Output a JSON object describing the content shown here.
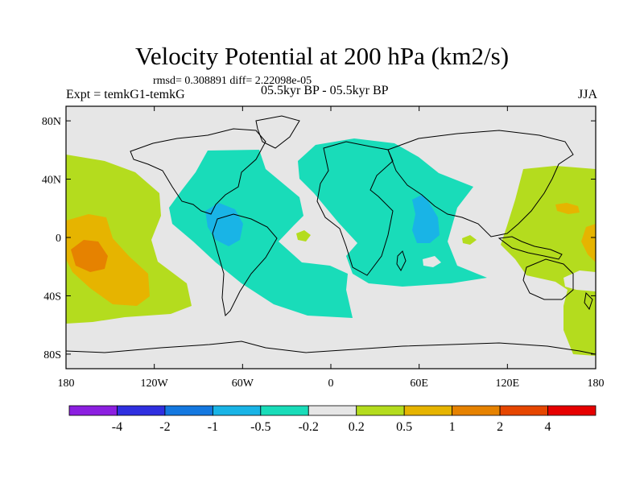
{
  "title": "Velocity Potential at 200 hPa (km2/s)",
  "stats": "rmsd= 0.308891 diff= 2.22098e-05",
  "experiment": "Expt = temkG1-temkG",
  "period": "05.5kyr BP - 05.5kyr BP",
  "season": "JJA",
  "map": {
    "background_color": "#e6e6e6",
    "y_ticks": [
      {
        "label": "80N",
        "lat": 80
      },
      {
        "label": "40N",
        "lat": 40
      },
      {
        "label": "0",
        "lat": 0
      },
      {
        "label": "40S",
        "lat": -40
      },
      {
        "label": "80S",
        "lat": -80
      }
    ],
    "x_ticks": [
      {
        "label": "180",
        "lon": -180
      },
      {
        "label": "120W",
        "lon": -120
      },
      {
        "label": "60W",
        "lon": -60
      },
      {
        "label": "0",
        "lon": 0
      },
      {
        "label": "60E",
        "lon": 60
      },
      {
        "label": "120E",
        "lon": 120
      },
      {
        "label": "180",
        "lon": 180
      }
    ]
  },
  "colorbar": {
    "colors": [
      "#8c1fe0",
      "#2f2fe0",
      "#1478e0",
      "#19b4e6",
      "#19dcb9",
      "#e6e6e6",
      "#b4dc1e",
      "#e6b400",
      "#e68200",
      "#e64600",
      "#e60000"
    ],
    "labels": [
      "-4",
      "-2",
      "-1",
      "-0.5",
      "-0.2",
      "0.2",
      "0.5",
      "1",
      "2",
      "4"
    ]
  }
}
